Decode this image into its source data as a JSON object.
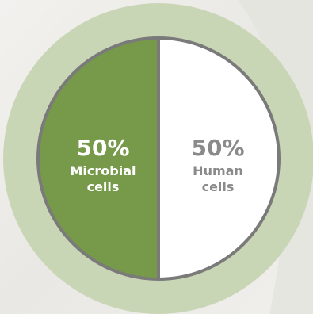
{
  "chart_data": {
    "type": "pie",
    "title": "",
    "slices": [
      {
        "percent_label": "50%",
        "name": "Microbial",
        "name_line2": "cells",
        "value": 50,
        "color": "#77994a",
        "text_color": "#ffffff"
      },
      {
        "percent_label": "50%",
        "name": "Human",
        "name_line2": "cells",
        "value": 50,
        "color": "#ffffff",
        "text_color": "#8a8a8a"
      }
    ],
    "ring_color": "#c9d6b6",
    "border_color": "#7a7a7a",
    "legend": "none"
  }
}
